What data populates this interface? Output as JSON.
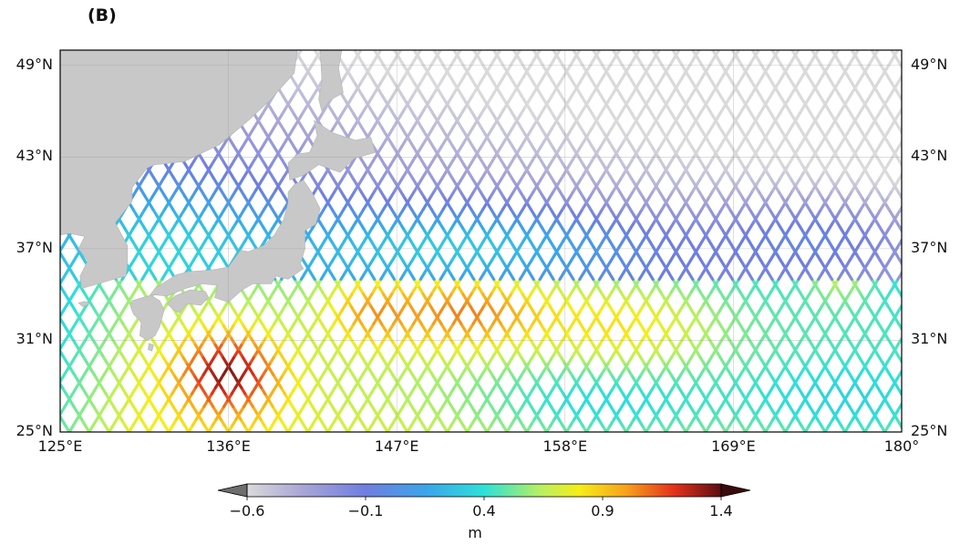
{
  "panel_label": "(B)",
  "map": {
    "projection": "plate-carree",
    "extent": {
      "lon": [
        125,
        180
      ],
      "lat": [
        25,
        50
      ]
    },
    "lat_ticks": [
      {
        "value": 49,
        "label": "49°N"
      },
      {
        "value": 43,
        "label": "43°N"
      },
      {
        "value": 37,
        "label": "37°N"
      },
      {
        "value": 31,
        "label": "31°N"
      },
      {
        "value": 25,
        "label": "25°N"
      }
    ],
    "lon_ticks": [
      {
        "value": 125,
        "label": "125°E"
      },
      {
        "value": 136,
        "label": "136°E"
      },
      {
        "value": 147,
        "label": "147°E"
      },
      {
        "value": 158,
        "label": "158°E"
      },
      {
        "value": 169,
        "label": "169°E"
      },
      {
        "value": 180,
        "label": "180°"
      }
    ],
    "grid": true,
    "land_color": "#c8c8c8",
    "variable": "along-track sea level anomaly",
    "track_slope_deg_lat_per_deg_lon": 1.65
  },
  "colorbar": {
    "label": "m",
    "vmin": -0.6,
    "vmax": 1.4,
    "extend": "both",
    "ticks": [
      {
        "value": -0.6,
        "label": "−0.6"
      },
      {
        "value": -0.1,
        "label": "−0.1"
      },
      {
        "value": 0.4,
        "label": "0.4"
      },
      {
        "value": 0.9,
        "label": "0.9"
      },
      {
        "value": 1.4,
        "label": "1.4"
      }
    ],
    "colormap_stops": [
      {
        "t": 0.0,
        "color": "#dadada"
      },
      {
        "t": 0.12,
        "color": "#a7a4d6"
      },
      {
        "t": 0.25,
        "color": "#6f7ee0"
      },
      {
        "t": 0.38,
        "color": "#3aa6ea"
      },
      {
        "t": 0.5,
        "color": "#2fe0d8"
      },
      {
        "t": 0.62,
        "color": "#b8f060"
      },
      {
        "t": 0.7,
        "color": "#f5ee1a"
      },
      {
        "t": 0.8,
        "color": "#f7a11c"
      },
      {
        "t": 0.9,
        "color": "#e3321a"
      },
      {
        "t": 1.0,
        "color": "#5a0e12"
      }
    ],
    "under_color": "#6e6e6e",
    "over_color": "#3a0a0c"
  },
  "field_description": {
    "north_of_35N": "mostly negative values, lowest toward northeast",
    "south_of_35N": "positive values, peaks near 29N 136E and 33N 150-153E"
  }
}
